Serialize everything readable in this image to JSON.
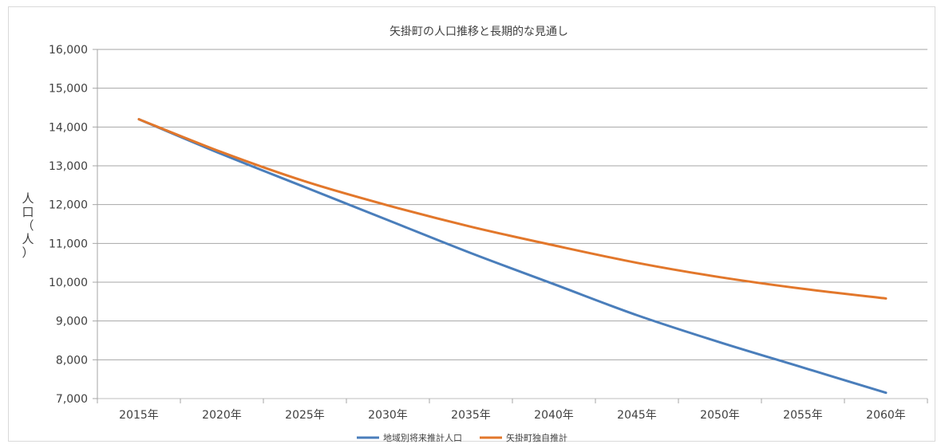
{
  "chart_data": {
    "type": "line",
    "title": "矢掛町の人口推移と長期的な見通し",
    "ylabel": "人口（人）",
    "xlabel": "",
    "categories": [
      "2015年",
      "2020年",
      "2025年",
      "2030年",
      "2035年",
      "2040年",
      "2045年",
      "2050年",
      "2055年",
      "2060年"
    ],
    "ylim": [
      7000,
      16000
    ],
    "yticks": [
      7000,
      8000,
      9000,
      10000,
      11000,
      12000,
      13000,
      14000,
      15000,
      16000
    ],
    "ytick_labels": [
      "7,000",
      "8,000",
      "9,000",
      "10,000",
      "11,000",
      "12,000",
      "13,000",
      "14,000",
      "15,000",
      "16,000"
    ],
    "grid": true,
    "legend_position": "bottom",
    "series": [
      {
        "name": "地域別将来推計人口",
        "color": "#4a7ebb",
        "values": [
          14200,
          13300,
          12450,
          11600,
          10750,
          9950,
          9150,
          8450,
          7800,
          7150
        ]
      },
      {
        "name": "矢掛町独自推計",
        "color": "#e2772b",
        "values": [
          14200,
          13350,
          12600,
          11980,
          11430,
          10950,
          10500,
          10130,
          9830,
          9580
        ]
      }
    ]
  }
}
